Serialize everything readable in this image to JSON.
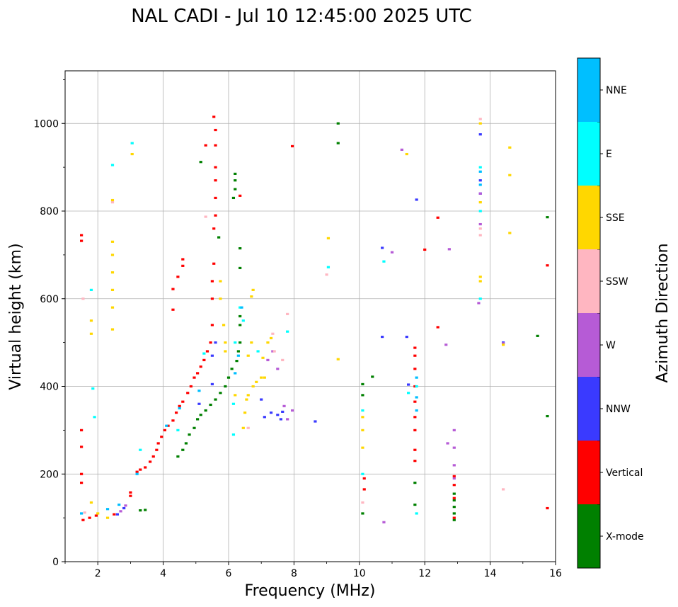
{
  "chart_data": {
    "type": "scatter",
    "title": "NAL CADI - Jul 10 12:45:00 2025 UTC",
    "xlabel": "Frequency (MHz)",
    "ylabel": "Virtual height (km)",
    "xlim": [
      1,
      16
    ],
    "ylim": [
      0,
      1120
    ],
    "x_ticks": [
      2,
      4,
      6,
      8,
      10,
      12,
      14,
      16
    ],
    "y_ticks": [
      0,
      200,
      400,
      600,
      800,
      1000
    ],
    "grid": true,
    "colorbar": {
      "label": "Azimuth Direction",
      "categories": [
        {
          "name": "X-mode",
          "color": "#008000"
        },
        {
          "name": "Vertical",
          "color": "#ff0000"
        },
        {
          "name": "NNW",
          "color": "#3a3aff"
        },
        {
          "name": "W",
          "color": "#b65bd6"
        },
        {
          "name": "SSW",
          "color": "#ffb6c1"
        },
        {
          "name": "SSE",
          "color": "#ffd700"
        },
        {
          "name": "E",
          "color": "#00ffff"
        },
        {
          "name": "NNE",
          "color": "#00bfff"
        }
      ]
    },
    "series": [
      {
        "name": "X-mode",
        "points": [
          [
            3.3,
            117
          ],
          [
            3.45,
            118
          ],
          [
            4.45,
            240
          ],
          [
            4.6,
            255
          ],
          [
            4.7,
            270
          ],
          [
            4.8,
            290
          ],
          [
            4.95,
            305
          ],
          [
            5.05,
            325
          ],
          [
            5.15,
            335
          ],
          [
            5.3,
            345
          ],
          [
            5.45,
            358
          ],
          [
            5.6,
            370
          ],
          [
            5.75,
            385
          ],
          [
            5.9,
            400
          ],
          [
            6.0,
            420
          ],
          [
            6.1,
            440
          ],
          [
            6.25,
            458
          ],
          [
            6.3,
            480
          ],
          [
            6.35,
            500
          ],
          [
            6.35,
            540
          ],
          [
            6.35,
            560
          ],
          [
            6.35,
            670
          ],
          [
            6.35,
            715
          ],
          [
            6.15,
            830
          ],
          [
            6.2,
            850
          ],
          [
            6.2,
            870
          ],
          [
            6.2,
            885
          ],
          [
            5.15,
            912
          ],
          [
            5.7,
            740
          ],
          [
            9.35,
            955
          ],
          [
            9.35,
            1000
          ],
          [
            10.1,
            110
          ],
          [
            10.1,
            380
          ],
          [
            10.1,
            405
          ],
          [
            10.4,
            422
          ],
          [
            11.7,
            130
          ],
          [
            11.7,
            180
          ],
          [
            12.9,
            95
          ],
          [
            12.9,
            110
          ],
          [
            12.9,
            125
          ],
          [
            12.9,
            140
          ],
          [
            12.9,
            155
          ],
          [
            15.75,
            332
          ],
          [
            15.75,
            786
          ],
          [
            15.45,
            515
          ]
        ]
      },
      {
        "name": "Vertical",
        "points": [
          [
            1.55,
            95
          ],
          [
            1.75,
            100
          ],
          [
            1.95,
            105
          ],
          [
            1.5,
            180
          ],
          [
            1.5,
            200
          ],
          [
            1.5,
            262
          ],
          [
            1.5,
            300
          ],
          [
            1.5,
            732
          ],
          [
            1.5,
            745
          ],
          [
            2.5,
            108
          ],
          [
            3.0,
            150
          ],
          [
            3.0,
            158
          ],
          [
            3.2,
            205
          ],
          [
            3.3,
            210
          ],
          [
            3.45,
            215
          ],
          [
            3.6,
            228
          ],
          [
            3.7,
            240
          ],
          [
            3.8,
            255
          ],
          [
            3.85,
            270
          ],
          [
            3.95,
            285
          ],
          [
            4.05,
            300
          ],
          [
            4.15,
            310
          ],
          [
            4.3,
            322
          ],
          [
            4.4,
            340
          ],
          [
            4.5,
            355
          ],
          [
            4.6,
            365
          ],
          [
            4.75,
            385
          ],
          [
            4.85,
            400
          ],
          [
            4.95,
            420
          ],
          [
            5.05,
            430
          ],
          [
            5.15,
            445
          ],
          [
            5.25,
            460
          ],
          [
            5.35,
            480
          ],
          [
            5.45,
            500
          ],
          [
            5.5,
            540
          ],
          [
            5.5,
            600
          ],
          [
            5.5,
            640
          ],
          [
            5.55,
            680
          ],
          [
            5.55,
            760
          ],
          [
            5.6,
            790
          ],
          [
            5.6,
            830
          ],
          [
            5.6,
            870
          ],
          [
            5.6,
            900
          ],
          [
            5.6,
            950
          ],
          [
            5.6,
            985
          ],
          [
            5.55,
            1015
          ],
          [
            4.3,
            575
          ],
          [
            4.3,
            622
          ],
          [
            4.45,
            650
          ],
          [
            4.6,
            675
          ],
          [
            4.6,
            690
          ],
          [
            5.3,
            950
          ],
          [
            6.35,
            835
          ],
          [
            7.95,
            948
          ],
          [
            10.15,
            165
          ],
          [
            10.15,
            190
          ],
          [
            11.7,
            230
          ],
          [
            11.7,
            255
          ],
          [
            11.7,
            300
          ],
          [
            11.7,
            330
          ],
          [
            11.7,
            365
          ],
          [
            11.7,
            400
          ],
          [
            11.7,
            440
          ],
          [
            11.7,
            470
          ],
          [
            11.7,
            488
          ],
          [
            12.4,
            535
          ],
          [
            12.4,
            785
          ],
          [
            12.9,
            175
          ],
          [
            12.9,
            195
          ],
          [
            12.9,
            145
          ],
          [
            12.9,
            100
          ],
          [
            15.75,
            122
          ],
          [
            15.75,
            676
          ],
          [
            12.0,
            712
          ]
        ]
      },
      {
        "name": "NNW",
        "points": [
          [
            2.6,
            108
          ],
          [
            2.8,
            122
          ],
          [
            5.1,
            360
          ],
          [
            5.5,
            405
          ],
          [
            5.5,
            470
          ],
          [
            5.6,
            500
          ],
          [
            7.1,
            330
          ],
          [
            7.3,
            340
          ],
          [
            7.5,
            335
          ],
          [
            7.6,
            325
          ],
          [
            7.65,
            342
          ],
          [
            7.0,
            370
          ],
          [
            8.65,
            320
          ],
          [
            10.7,
            513
          ],
          [
            10.7,
            716
          ],
          [
            11.45,
            513
          ],
          [
            11.5,
            404
          ],
          [
            11.75,
            826
          ],
          [
            13.7,
            870
          ],
          [
            13.7,
            840
          ],
          [
            13.7,
            975
          ],
          [
            14.4,
            500
          ]
        ]
      },
      {
        "name": "W",
        "points": [
          [
            2.7,
            115
          ],
          [
            2.85,
            128
          ],
          [
            7.2,
            460
          ],
          [
            7.35,
            480
          ],
          [
            7.5,
            440
          ],
          [
            7.8,
            325
          ],
          [
            7.95,
            345
          ],
          [
            7.7,
            355
          ],
          [
            10.75,
            90
          ],
          [
            11.0,
            706
          ],
          [
            11.3,
            940
          ],
          [
            12.7,
            270
          ],
          [
            12.9,
            300
          ],
          [
            12.9,
            260
          ],
          [
            12.9,
            220
          ],
          [
            12.9,
            190
          ],
          [
            12.65,
            495
          ],
          [
            12.75,
            713
          ],
          [
            13.65,
            590
          ],
          [
            13.7,
            770
          ],
          [
            13.7,
            840
          ],
          [
            14.4,
            498
          ]
        ]
      },
      {
        "name": "SSW",
        "points": [
          [
            1.6,
            112
          ],
          [
            1.55,
            600
          ],
          [
            2.45,
            820
          ],
          [
            3.05,
            955
          ],
          [
            5.3,
            787
          ],
          [
            6.6,
            305
          ],
          [
            7.35,
            520
          ],
          [
            7.4,
            480
          ],
          [
            7.8,
            565
          ],
          [
            7.65,
            460
          ],
          [
            9.0,
            655
          ],
          [
            10.1,
            135
          ],
          [
            13.7,
            745
          ],
          [
            13.7,
            760
          ],
          [
            13.7,
            1010
          ],
          [
            14.4,
            165
          ]
        ]
      },
      {
        "name": "SSE",
        "points": [
          [
            1.8,
            135
          ],
          [
            1.8,
            520
          ],
          [
            1.8,
            550
          ],
          [
            2.0,
            110
          ],
          [
            2.3,
            100
          ],
          [
            2.45,
            530
          ],
          [
            2.45,
            580
          ],
          [
            2.45,
            620
          ],
          [
            2.45,
            660
          ],
          [
            2.45,
            700
          ],
          [
            2.45,
            730
          ],
          [
            2.45,
            825
          ],
          [
            3.05,
            930
          ],
          [
            5.75,
            640
          ],
          [
            5.75,
            600
          ],
          [
            5.85,
            540
          ],
          [
            5.9,
            500
          ],
          [
            5.9,
            480
          ],
          [
            6.45,
            305
          ],
          [
            6.5,
            340
          ],
          [
            6.55,
            370
          ],
          [
            6.6,
            380
          ],
          [
            6.75,
            400
          ],
          [
            6.85,
            410
          ],
          [
            7.0,
            420
          ],
          [
            7.1,
            420
          ],
          [
            6.6,
            470
          ],
          [
            6.7,
            500
          ],
          [
            6.7,
            605
          ],
          [
            6.75,
            620
          ],
          [
            7.05,
            465
          ],
          [
            7.2,
            500
          ],
          [
            7.3,
            510
          ],
          [
            6.2,
            380
          ],
          [
            9.05,
            738
          ],
          [
            9.35,
            462
          ],
          [
            10.1,
            260
          ],
          [
            10.1,
            300
          ],
          [
            10.1,
            330
          ],
          [
            11.45,
            930
          ],
          [
            13.7,
            640
          ],
          [
            13.7,
            650
          ],
          [
            13.7,
            820
          ],
          [
            13.7,
            1000
          ],
          [
            14.6,
            945
          ],
          [
            14.6,
            882
          ],
          [
            14.6,
            750
          ],
          [
            14.4,
            495
          ]
        ]
      },
      {
        "name": "E",
        "points": [
          [
            1.85,
            395
          ],
          [
            1.8,
            620
          ],
          [
            1.9,
            330
          ],
          [
            2.45,
            905
          ],
          [
            3.05,
            955
          ],
          [
            3.3,
            255
          ],
          [
            4.45,
            300
          ],
          [
            5.25,
            475
          ],
          [
            6.15,
            360
          ],
          [
            6.15,
            290
          ],
          [
            6.2,
            500
          ],
          [
            6.35,
            580
          ],
          [
            6.45,
            550
          ],
          [
            6.9,
            480
          ],
          [
            7.8,
            525
          ],
          [
            9.05,
            672
          ],
          [
            10.75,
            685
          ],
          [
            10.1,
            200
          ],
          [
            10.1,
            345
          ],
          [
            11.5,
            385
          ],
          [
            11.75,
            400
          ],
          [
            11.75,
            110
          ],
          [
            13.7,
            600
          ],
          [
            13.7,
            800
          ],
          [
            13.7,
            900
          ]
        ]
      },
      {
        "name": "NNE",
        "points": [
          [
            1.5,
            110
          ],
          [
            2.3,
            120
          ],
          [
            2.65,
            130
          ],
          [
            3.2,
            200
          ],
          [
            4.1,
            310
          ],
          [
            4.5,
            350
          ],
          [
            5.1,
            390
          ],
          [
            6.2,
            430
          ],
          [
            6.3,
            470
          ],
          [
            6.4,
            580
          ],
          [
            11.75,
            420
          ],
          [
            11.75,
            375
          ],
          [
            11.75,
            345
          ],
          [
            13.7,
            890
          ],
          [
            13.7,
            860
          ]
        ]
      }
    ]
  }
}
